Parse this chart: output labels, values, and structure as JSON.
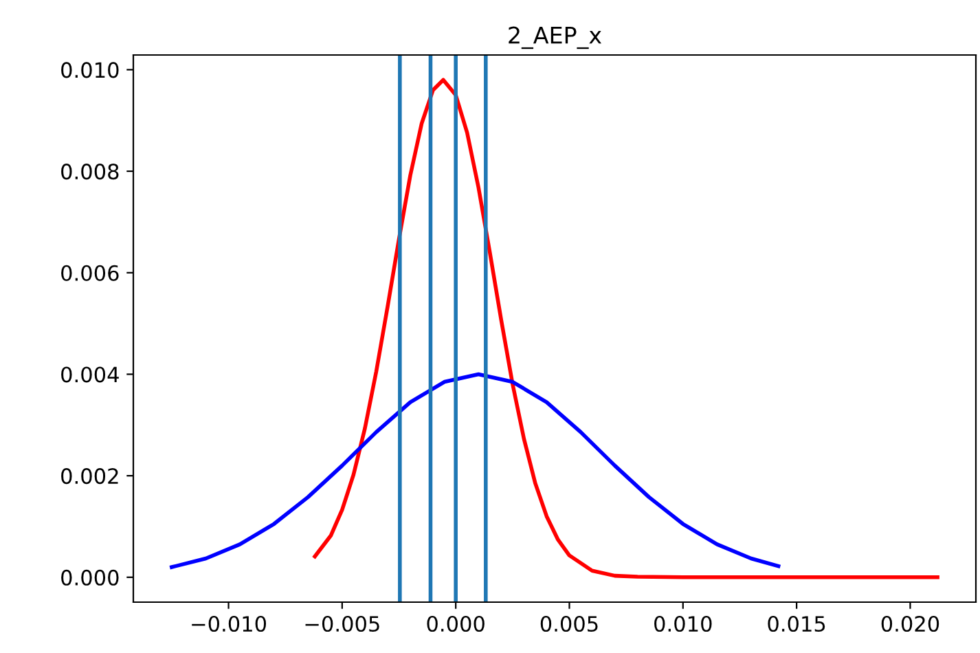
{
  "chart_data": {
    "type": "line",
    "title": "2_AEP_x",
    "series": [
      {
        "color": "#ff0000",
        "x": [
          -0.0062,
          -0.0055,
          -0.005,
          -0.0045,
          -0.004,
          -0.0035,
          -0.003,
          -0.0025,
          -0.002,
          -0.0015,
          -0.001,
          -0.00055,
          0,
          0.0005,
          0.001,
          0.0015,
          0.002,
          0.0025,
          0.003,
          0.0035,
          0.004,
          0.0045,
          0.005,
          0.006,
          0.007,
          0.008,
          0.01,
          0.015,
          0.0212
        ],
        "values": [
          0.00041,
          0.00082,
          0.00133,
          0.00202,
          0.00293,
          0.00405,
          0.00533,
          0.00666,
          0.00792,
          0.00894,
          0.0096,
          0.0098,
          0.0095,
          0.00876,
          0.00768,
          0.0064,
          0.00507,
          0.00381,
          0.00273,
          0.00185,
          0.0012,
          0.00074,
          0.00043,
          0.00013,
          3e-05,
          1e-05,
          0,
          0,
          0
        ]
      },
      {
        "color": "#0000ff",
        "x": [
          -0.0125,
          -0.011,
          -0.0095,
          -0.008,
          -0.0065,
          -0.005,
          -0.0035,
          -0.002,
          -0.0005,
          0.001,
          0.0025,
          0.004,
          0.0055,
          0.007,
          0.0085,
          0.01,
          0.0115,
          0.013,
          0.0142
        ],
        "values": [
          0.0002,
          0.00037,
          0.00065,
          0.00105,
          0.00158,
          0.0022,
          0.00286,
          0.00345,
          0.00385,
          0.004,
          0.00385,
          0.00345,
          0.00286,
          0.0022,
          0.00158,
          0.00105,
          0.00065,
          0.00037,
          0.00022
        ]
      }
    ],
    "ref_lines": [
      {
        "axis": "x",
        "value": -0.00246,
        "color": "#1f77b4"
      },
      {
        "axis": "x",
        "value": -0.00111,
        "color": "#1f77b4"
      },
      {
        "axis": "x",
        "value": 0.0,
        "color": "#1f77b4"
      },
      {
        "axis": "x",
        "value": 0.00132,
        "color": "#1f77b4"
      }
    ],
    "xlim": [
      -0.01419,
      0.02289
    ],
    "ylim": [
      -0.00049,
      0.01029
    ],
    "xticks": [
      {
        "value": -0.01,
        "label": "−0.010"
      },
      {
        "value": -0.005,
        "label": "−0.005"
      },
      {
        "value": 0,
        "label": "0.000"
      },
      {
        "value": 0.005,
        "label": "0.005"
      },
      {
        "value": 0.01,
        "label": "0.010"
      },
      {
        "value": 0.015,
        "label": "0.015"
      },
      {
        "value": 0.02,
        "label": "0.020"
      }
    ],
    "yticks": [
      {
        "value": 0,
        "label": "0.000"
      },
      {
        "value": 0.002,
        "label": "0.002"
      },
      {
        "value": 0.004,
        "label": "0.004"
      },
      {
        "value": 0.006,
        "label": "0.006"
      },
      {
        "value": 0.008,
        "label": "0.008"
      },
      {
        "value": 0.01,
        "label": "0.010"
      }
    ],
    "grid": false,
    "legend": false
  }
}
